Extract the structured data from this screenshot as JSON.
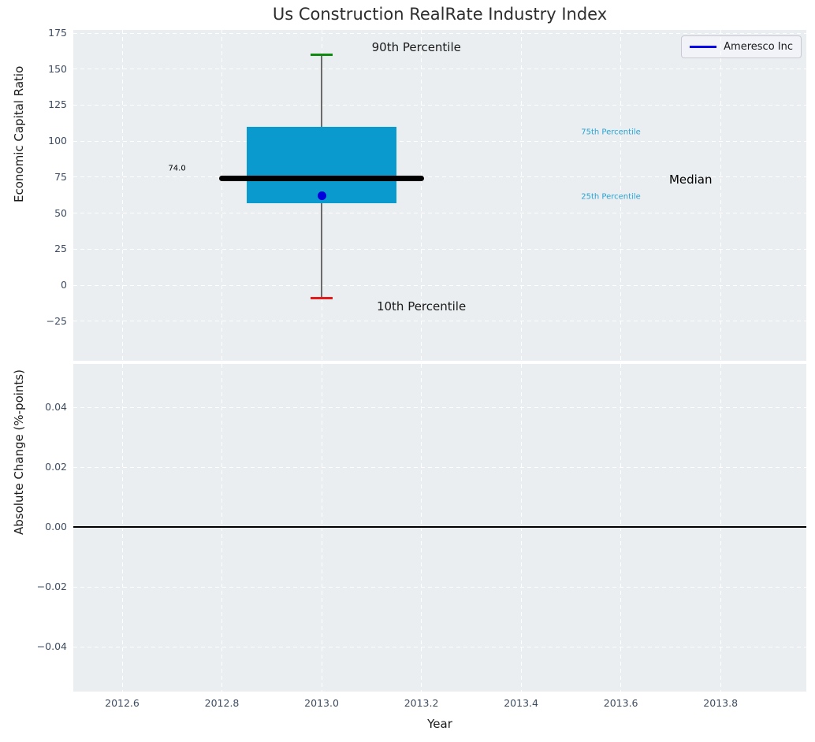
{
  "title": "Us Construction RealRate Industry Index",
  "legend": {
    "label": "Ameresco Inc",
    "line_color": "#0000ee"
  },
  "colors": {
    "axes_bg": "#eaeef0",
    "grid": "#ffffff",
    "box_fill": "#0a9ace",
    "median_line": "#000000",
    "whisker": "#6b6b6b",
    "cap_top": "#0e8b0e",
    "cap_bottom": "#e41a1a",
    "company_point": "#0000dd",
    "tick_label": "#3e4d61",
    "percentile_label": "#27a3d5",
    "zero_line": "#000000",
    "title_text": "#2e2e2e"
  },
  "x_axis": {
    "label": "Year",
    "xticks": [
      2012.6,
      2012.8,
      2013.0,
      2013.2,
      2013.4,
      2013.6,
      2013.8
    ],
    "xtick_labels": [
      "2012.6",
      "2012.8",
      "2013.0",
      "2013.2",
      "2013.4",
      "2013.6",
      "2013.8"
    ],
    "xlim": [
      2012.502,
      2013.972
    ]
  },
  "chart_data": [
    {
      "type": "box",
      "title": "Us Construction RealRate Industry Index",
      "ylabel": "Economic Capital Ratio",
      "xlabel": "",
      "x": 2013.0,
      "box": {
        "p90": 160,
        "p75": 110,
        "median": 74.0,
        "p25": 57,
        "p10": -9,
        "box_x_left": 2012.85,
        "box_x_right": 2013.15,
        "median_x_left": 2012.795,
        "median_x_right": 2013.205
      },
      "company_point": {
        "label": "Ameresco Inc",
        "x": 2013.0,
        "y": 62
      },
      "yticks": [
        175,
        150,
        125,
        100,
        75,
        50,
        25,
        0,
        -25
      ],
      "ytick_labels": [
        "175",
        "150",
        "125",
        "100",
        "75",
        "50",
        "25",
        "0",
        "−25"
      ],
      "ylim": [
        -52.5,
        177.2
      ],
      "grid": true,
      "legend_position": "upper right",
      "annotations": [
        {
          "text": "90th Percentile",
          "x": 2013.19,
          "y": 165,
          "size": 15,
          "color": "#1a1a1a"
        },
        {
          "text": "10th Percentile",
          "x": 2013.2,
          "y": -15,
          "size": 15,
          "color": "#1a1a1a"
        },
        {
          "text": "75th Percentile",
          "x": 2013.58,
          "y": 106,
          "size": 10,
          "color": "#27a3d5"
        },
        {
          "text": "25th Percentile",
          "x": 2013.58,
          "y": 61,
          "size": 10,
          "color": "#27a3d5"
        },
        {
          "text": "Median",
          "x": 2013.74,
          "y": 73.5,
          "size": 15,
          "color": "#000000"
        },
        {
          "text": "74.0",
          "x": 2012.71,
          "y": 81,
          "size": 10,
          "color": "#000000"
        }
      ]
    },
    {
      "type": "line",
      "title": "",
      "ylabel": "Absolute Change (%-points)",
      "xlabel": "Year",
      "series": [],
      "yticks": [
        0.04,
        0.02,
        0.0,
        -0.02,
        -0.04
      ],
      "ytick_labels": [
        "0.04",
        "0.02",
        "0.00",
        "−0.02",
        "−0.04"
      ],
      "ylim": [
        -0.055,
        0.0545
      ],
      "zero_line": 0.0,
      "grid": true
    }
  ]
}
